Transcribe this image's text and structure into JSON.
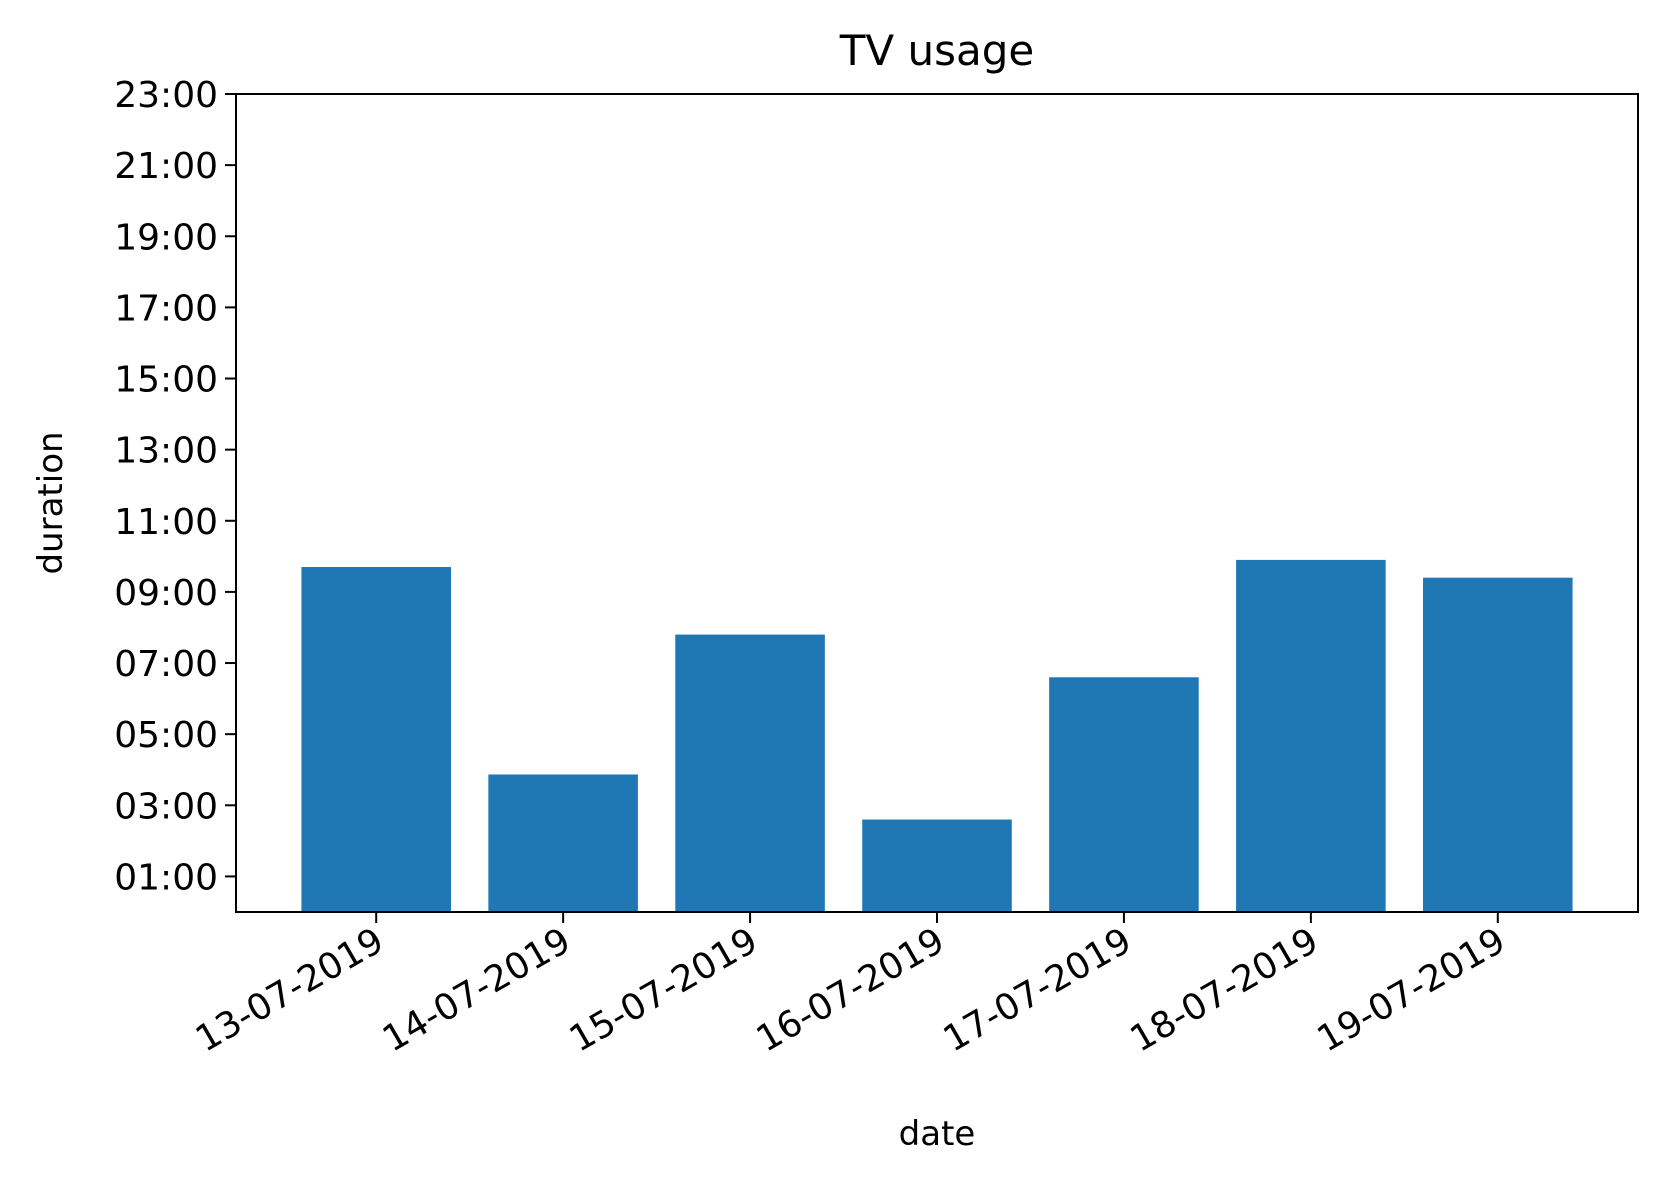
{
  "chart_data": {
    "type": "bar",
    "title": "TV usage",
    "xlabel": "date",
    "ylabel": "duration",
    "categories": [
      "13-07-2019",
      "14-07-2019",
      "15-07-2019",
      "16-07-2019",
      "17-07-2019",
      "18-07-2019",
      "19-07-2019"
    ],
    "values": [
      "09:42",
      "03:52",
      "07:48",
      "02:36",
      "06:36",
      "09:54",
      "09:24"
    ],
    "y_ticks": [
      "01:00",
      "03:00",
      "05:00",
      "07:00",
      "09:00",
      "11:00",
      "13:00",
      "15:00",
      "17:00",
      "19:00",
      "21:00",
      "23:00"
    ],
    "ylim": [
      "00:00",
      "23:00"
    ],
    "bar_color": "#1f77b4",
    "grid": false,
    "legend": "none"
  }
}
